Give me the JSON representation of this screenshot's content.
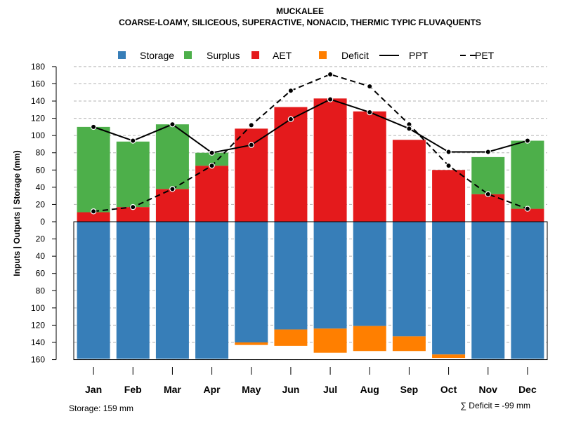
{
  "chart_data": {
    "type": "bar",
    "title": "MUCKALEE",
    "subtitle": "COARSE-LOAMY, SILICEOUS, SUPERACTIVE, NONACID, THERMIC TYPIC FLUVAQUENTS",
    "ylabel": "Inputs | Outputs | Storage    (mm)",
    "ylim": [
      -160,
      180
    ],
    "y_ticks_upper": [
      180,
      160,
      140,
      120,
      100,
      80,
      60,
      40,
      20,
      0
    ],
    "y_ticks_lower": [
      20,
      40,
      60,
      80,
      100,
      120,
      140,
      160
    ],
    "categories": [
      "Jan",
      "Feb",
      "Mar",
      "Apr",
      "May",
      "Jun",
      "Jul",
      "Aug",
      "Sep",
      "Oct",
      "Nov",
      "Dec"
    ],
    "legend": [
      {
        "name": "Storage",
        "type": "box",
        "color": "#377EB8"
      },
      {
        "name": "Surplus",
        "type": "box",
        "color": "#4DAF4A"
      },
      {
        "name": "AET",
        "type": "box",
        "color": "#E41A1C"
      },
      {
        "name": "Deficit",
        "type": "box",
        "color": "#FF7F00"
      },
      {
        "name": "PPT",
        "type": "solid-line",
        "color": "#000000"
      },
      {
        "name": "PET",
        "type": "dashed-line",
        "color": "#000000"
      }
    ],
    "series": [
      {
        "name": "AET",
        "values": [
          11,
          17,
          38,
          65,
          108,
          133,
          143,
          128,
          95,
          60,
          32,
          15
        ]
      },
      {
        "name": "Surplus",
        "values": [
          99,
          76,
          75,
          15,
          0,
          0,
          0,
          0,
          0,
          0,
          43,
          79
        ]
      },
      {
        "name": "PPT",
        "values": [
          110,
          94,
          113,
          80,
          89,
          119,
          142,
          127,
          108,
          81,
          81,
          94
        ]
      },
      {
        "name": "PET",
        "values": [
          12,
          17,
          38,
          65,
          112,
          152,
          171,
          157,
          113,
          65,
          32,
          15
        ]
      },
      {
        "name": "Storage",
        "values": [
          159,
          159,
          159,
          159,
          140,
          125,
          124,
          121,
          133,
          154,
          159,
          159
        ]
      },
      {
        "name": "Deficit",
        "values": [
          0,
          0,
          0,
          0,
          3,
          19,
          28,
          29,
          17,
          4,
          0,
          0
        ]
      }
    ],
    "storage_label": "Storage: 159 mm",
    "deficit_label": "∑ Deficit = -99 mm"
  }
}
